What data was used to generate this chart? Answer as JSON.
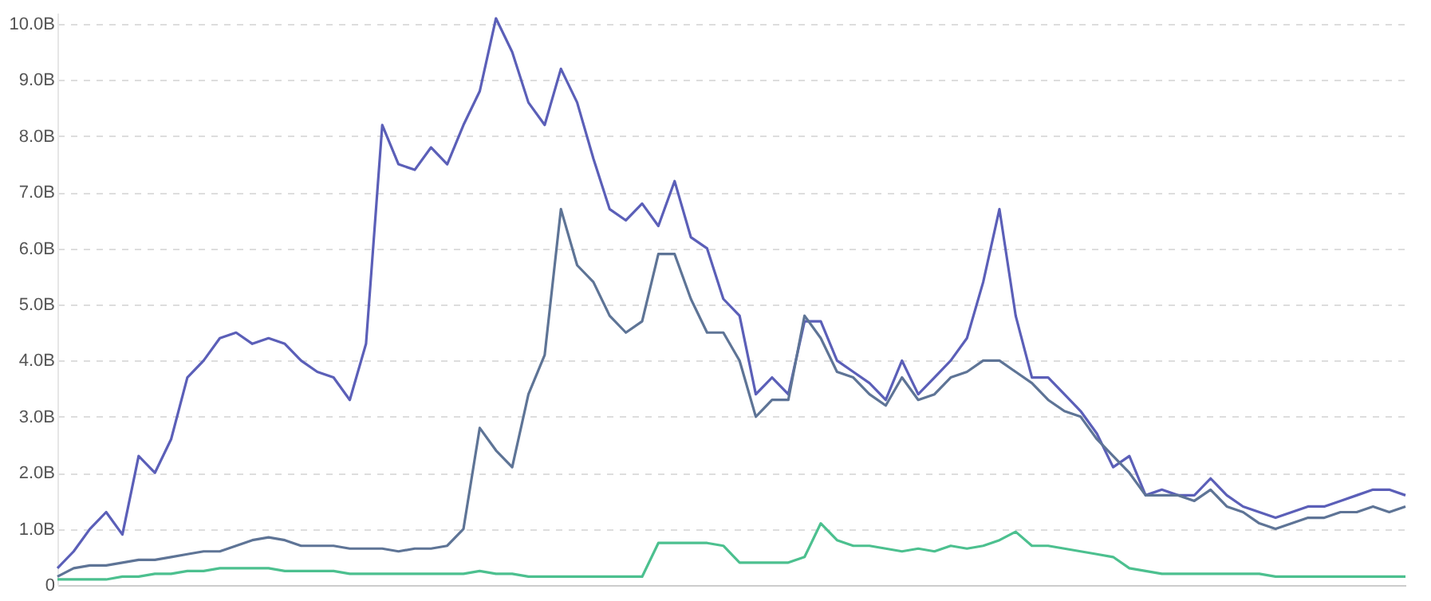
{
  "chart_data": {
    "type": "line",
    "categories": [
      null,
      null,
      null,
      null,
      null,
      null,
      null,
      null,
      null,
      null,
      null,
      null,
      null,
      null,
      null,
      null,
      null,
      null,
      null,
      null,
      null,
      null,
      null,
      null,
      null,
      null,
      null,
      null,
      null,
      null,
      null,
      null,
      null,
      null,
      null,
      null,
      null,
      null,
      null,
      null,
      null,
      null,
      null,
      null,
      null,
      null,
      null,
      null,
      null,
      null,
      null,
      null,
      null,
      null,
      null,
      null,
      null,
      null,
      null,
      null,
      null,
      null,
      null,
      null,
      null,
      null,
      null,
      null,
      null,
      null,
      null,
      null,
      null,
      null,
      null,
      null,
      null,
      null,
      null,
      null,
      null,
      null,
      null,
      null
    ],
    "series": [
      {
        "color": "#5b5fb8",
        "values": [
          0.3,
          0.6,
          1.0,
          1.3,
          0.9,
          2.3,
          2.0,
          2.6,
          3.7,
          4.0,
          4.4,
          4.5,
          4.3,
          4.4,
          4.3,
          4.0,
          3.8,
          3.7,
          3.3,
          4.3,
          8.2,
          7.5,
          7.4,
          7.8,
          7.5,
          8.2,
          8.8,
          10.1,
          9.5,
          8.6,
          8.2,
          9.2,
          8.6,
          7.6,
          6.7,
          6.5,
          6.8,
          6.4,
          7.2,
          6.2,
          6.0,
          5.1,
          4.8,
          3.4,
          3.7,
          3.4,
          4.7,
          4.7,
          4.0,
          3.8,
          3.6,
          3.3,
          4.0,
          3.4,
          3.7,
          4.0,
          4.4,
          5.4,
          6.7,
          4.8,
          3.7,
          3.7,
          3.4,
          3.1,
          2.7,
          2.1,
          2.3,
          1.6,
          1.7,
          1.6,
          1.6,
          1.9,
          1.6,
          1.4,
          1.3,
          1.2,
          1.3,
          1.4,
          1.4,
          1.5,
          1.6,
          1.7,
          1.7,
          1.6
        ]
      },
      {
        "color": "#5e7496",
        "values": [
          0.15,
          0.3,
          0.35,
          0.35,
          0.4,
          0.45,
          0.45,
          0.5,
          0.55,
          0.6,
          0.6,
          0.7,
          0.8,
          0.85,
          0.8,
          0.7,
          0.7,
          0.7,
          0.65,
          0.65,
          0.65,
          0.6,
          0.65,
          0.65,
          0.7,
          1.0,
          2.8,
          2.4,
          2.1,
          3.4,
          4.1,
          6.7,
          5.7,
          5.4,
          4.8,
          4.5,
          4.7,
          5.9,
          5.9,
          5.1,
          4.5,
          4.5,
          4.0,
          3.0,
          3.3,
          3.3,
          4.8,
          4.4,
          3.8,
          3.7,
          3.4,
          3.2,
          3.7,
          3.3,
          3.4,
          3.7,
          3.8,
          4.0,
          4.0,
          3.8,
          3.6,
          3.3,
          3.1,
          3.0,
          2.6,
          2.3,
          2.0,
          1.6,
          1.6,
          1.6,
          1.5,
          1.7,
          1.4,
          1.3,
          1.1,
          1.0,
          1.1,
          1.2,
          1.2,
          1.3,
          1.3,
          1.4,
          1.3,
          1.4
        ]
      },
      {
        "color": "#4cc08f",
        "values": [
          0.1,
          0.1,
          0.1,
          0.1,
          0.15,
          0.15,
          0.2,
          0.2,
          0.25,
          0.25,
          0.3,
          0.3,
          0.3,
          0.3,
          0.25,
          0.25,
          0.25,
          0.25,
          0.2,
          0.2,
          0.2,
          0.2,
          0.2,
          0.2,
          0.2,
          0.2,
          0.25,
          0.2,
          0.2,
          0.15,
          0.15,
          0.15,
          0.15,
          0.15,
          0.15,
          0.15,
          0.15,
          0.75,
          0.75,
          0.75,
          0.75,
          0.7,
          0.4,
          0.4,
          0.4,
          0.4,
          0.5,
          1.1,
          0.8,
          0.7,
          0.7,
          0.65,
          0.6,
          0.65,
          0.6,
          0.7,
          0.65,
          0.7,
          0.8,
          0.95,
          0.7,
          0.7,
          0.65,
          0.6,
          0.55,
          0.5,
          0.3,
          0.25,
          0.2,
          0.2,
          0.2,
          0.2,
          0.2,
          0.2,
          0.2,
          0.15,
          0.15,
          0.15,
          0.15,
          0.15,
          0.15,
          0.15,
          0.15,
          0.15
        ]
      }
    ],
    "ylim": [
      0,
      10.2
    ],
    "yticks": [
      0,
      {
        "value": 1,
        "label": "1.0B"
      },
      {
        "value": 2,
        "label": "2.0B"
      },
      {
        "value": 3,
        "label": "3.0B"
      },
      {
        "value": 4,
        "label": "4.0B"
      },
      {
        "value": 5,
        "label": "5.0B"
      },
      {
        "value": 6,
        "label": "6.0B"
      },
      {
        "value": 7,
        "label": "7.0B"
      },
      {
        "value": 8,
        "label": "8.0B"
      },
      {
        "value": 9,
        "label": "9.0B"
      },
      {
        "value": 10,
        "label": "10.0B"
      }
    ],
    "grid": "y",
    "marker": "none",
    "line_style": "solid",
    "tick_labels": "y"
  }
}
